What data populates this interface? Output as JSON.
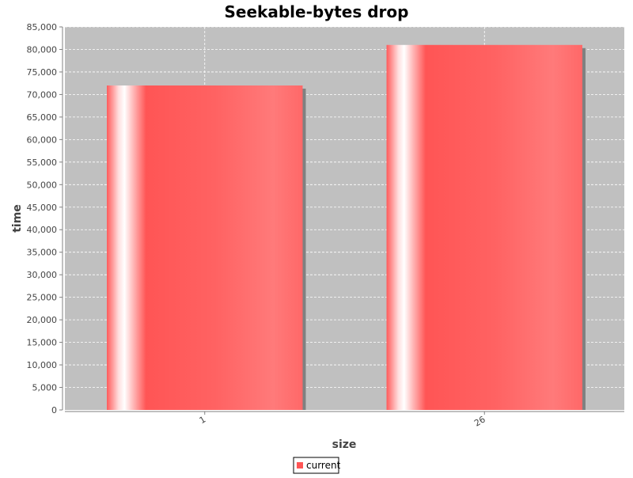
{
  "chart_data": {
    "type": "bar",
    "title": "Seekable-bytes drop",
    "xlabel": "size",
    "ylabel": "time",
    "categories": [
      "1",
      "26"
    ],
    "series": [
      {
        "name": "current",
        "values": [
          72000,
          81000
        ],
        "color": "#ff5555"
      }
    ],
    "ylim": [
      0,
      85000
    ],
    "y_tick_step": 5000,
    "y_tick_labels": [
      "0",
      "5,000",
      "10,000",
      "15,000",
      "20,000",
      "25,000",
      "30,000",
      "35,000",
      "40,000",
      "45,000",
      "50,000",
      "55,000",
      "60,000",
      "65,000",
      "70,000",
      "75,000",
      "80,000",
      "85,000"
    ],
    "grid": true,
    "legend_position": "bottom",
    "colors": {
      "plot_background": "#c0c0c0",
      "gridline": "#ffffff",
      "bar_shadow": "#808080"
    }
  }
}
